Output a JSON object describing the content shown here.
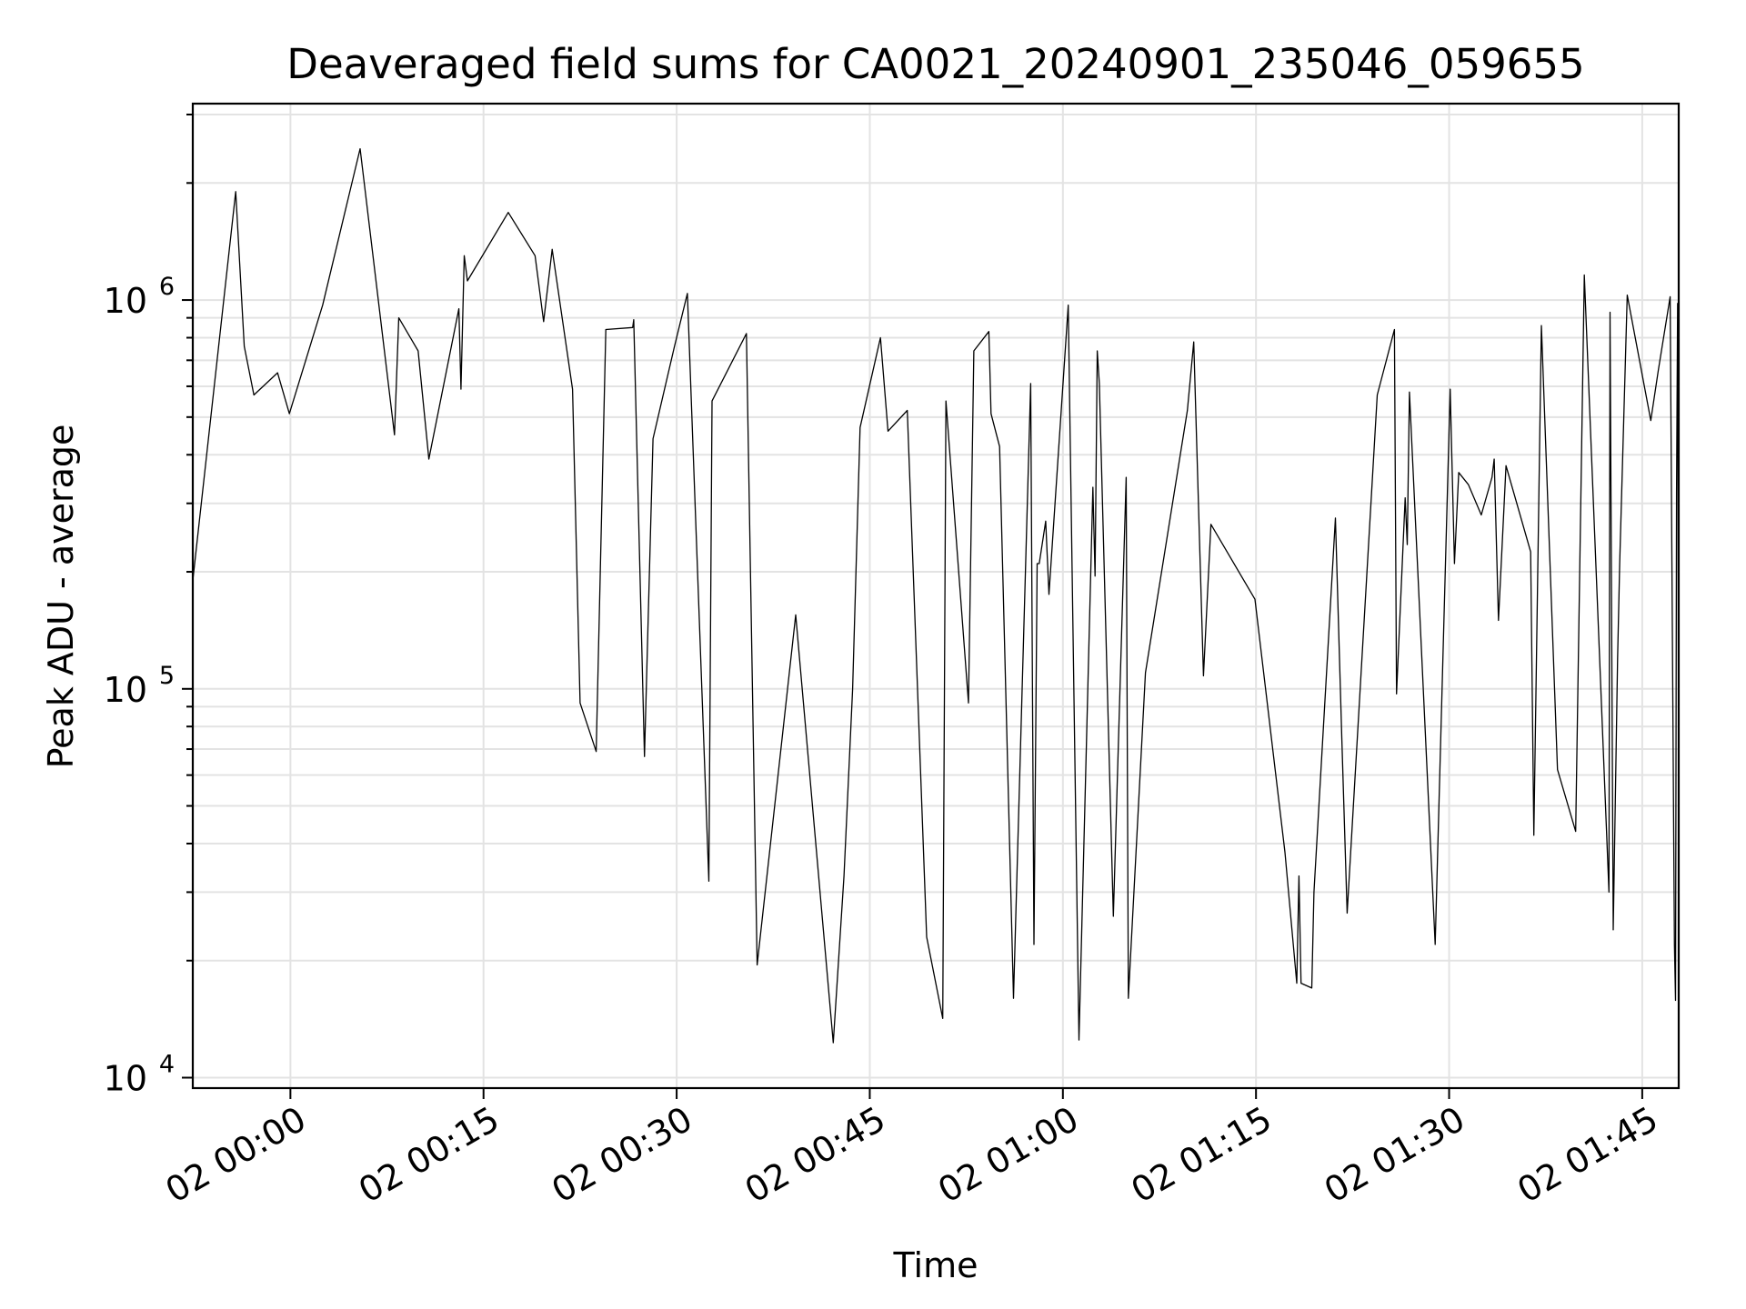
{
  "chart_data": {
    "type": "line",
    "title": "Deaveraged field sums for CA0021_20240901_235046_059655",
    "xlabel": "Time",
    "ylabel": "Peak ADU - average",
    "xscale": "time",
    "yscale": "log",
    "xlim": [
      "2024-09-01 23:52:25",
      "2024-09-02 01:47:50"
    ],
    "ylim": [
      9400,
      3200000
    ],
    "x_ticks": [
      {
        "t": "2024-09-02 00:00",
        "label": "02 00:00"
      },
      {
        "t": "2024-09-02 00:15",
        "label": "02 00:15"
      },
      {
        "t": "2024-09-02 00:30",
        "label": "02 00:30"
      },
      {
        "t": "2024-09-02 00:45",
        "label": "02 00:45"
      },
      {
        "t": "2024-09-02 01:00",
        "label": "02 01:00"
      },
      {
        "t": "2024-09-02 01:15",
        "label": "02 01:15"
      },
      {
        "t": "2024-09-02 01:30",
        "label": "02 01:30"
      },
      {
        "t": "2024-09-02 01:45",
        "label": "02 01:45"
      }
    ],
    "y_ticks": [
      {
        "v": 10000,
        "base": "10",
        "exp": "4"
      },
      {
        "v": 100000,
        "base": "10",
        "exp": "5"
      },
      {
        "v": 1000000,
        "base": "10",
        "exp": "6"
      }
    ],
    "grid": true,
    "legend": "none",
    "series": [
      {
        "color": "#000000",
        "points": [
          [
            "2024-09-01 23:52:25",
            190000
          ],
          [
            "2024-09-01 23:55:45",
            1900000
          ],
          [
            "2024-09-01 23:56:25",
            760000
          ],
          [
            "2024-09-01 23:57:10",
            570000
          ],
          [
            "2024-09-01 23:59:00",
            650000
          ],
          [
            "2024-09-01 23:59:55",
            510000
          ],
          [
            "2024-09-02 00:02:30",
            970000
          ],
          [
            "2024-09-02 00:05:25",
            2450000
          ],
          [
            "2024-09-02 00:08:05",
            450000
          ],
          [
            "2024-09-02 00:08:25",
            900000
          ],
          [
            "2024-09-02 00:09:55",
            740000
          ],
          [
            "2024-09-02 00:10:45",
            390000
          ],
          [
            "2024-09-02 00:13:05",
            950000
          ],
          [
            "2024-09-02 00:13:15",
            590000
          ],
          [
            "2024-09-02 00:13:30",
            1300000
          ],
          [
            "2024-09-02 00:13:45",
            1120000
          ],
          [
            "2024-09-02 00:16:55",
            1680000
          ],
          [
            "2024-09-02 00:19:00",
            1300000
          ],
          [
            "2024-09-02 00:19:40",
            880000
          ],
          [
            "2024-09-02 00:20:20",
            1350000
          ],
          [
            "2024-09-02 00:21:55",
            590000
          ],
          [
            "2024-09-02 00:22:30",
            92000
          ],
          [
            "2024-09-02 00:23:45",
            69000
          ],
          [
            "2024-09-02 00:24:30",
            840000
          ],
          [
            "2024-09-02 00:26:35",
            850000
          ],
          [
            "2024-09-02 00:26:40",
            890000
          ],
          [
            "2024-09-02 00:27:30",
            67000
          ],
          [
            "2024-09-02 00:28:10",
            440000
          ],
          [
            "2024-09-02 00:29:50",
            760000
          ],
          [
            "2024-09-02 00:30:50",
            1040000
          ],
          [
            "2024-09-02 00:32:30",
            32000
          ],
          [
            "2024-09-02 00:32:45",
            550000
          ],
          [
            "2024-09-02 00:35:25",
            820000
          ],
          [
            "2024-09-02 00:36:15",
            19500
          ],
          [
            "2024-09-02 00:39:15",
            155000
          ],
          [
            "2024-09-02 00:42:10",
            12300
          ],
          [
            "2024-09-02 00:43:00",
            33000
          ],
          [
            "2024-09-02 00:43:40",
            100000
          ],
          [
            "2024-09-02 00:44:15",
            470000
          ],
          [
            "2024-09-02 00:45:50",
            800000
          ],
          [
            "2024-09-02 00:46:25",
            460000
          ],
          [
            "2024-09-02 00:47:55",
            520000
          ],
          [
            "2024-09-02 00:49:25",
            23000
          ],
          [
            "2024-09-02 00:50:40",
            14200
          ],
          [
            "2024-09-02 00:50:55",
            550000
          ],
          [
            "2024-09-02 00:52:40",
            92000
          ],
          [
            "2024-09-02 00:53:05",
            740000
          ],
          [
            "2024-09-02 00:54:15",
            830000
          ],
          [
            "2024-09-02 00:54:25",
            510000
          ],
          [
            "2024-09-02 00:55:05",
            420000
          ],
          [
            "2024-09-02 00:56:10",
            16000
          ],
          [
            "2024-09-02 00:57:30",
            610000
          ],
          [
            "2024-09-02 00:57:45",
            22000
          ],
          [
            "2024-09-02 00:58:00",
            210000
          ],
          [
            "2024-09-02 00:58:10",
            210000
          ],
          [
            "2024-09-02 00:58:40",
            270000
          ],
          [
            "2024-09-02 00:58:55",
            175000
          ],
          [
            "2024-09-02 01:00:25",
            970000
          ],
          [
            "2024-09-02 01:01:15",
            12500
          ],
          [
            "2024-09-02 01:02:20",
            330000
          ],
          [
            "2024-09-02 01:02:30",
            195000
          ],
          [
            "2024-09-02 01:02:40",
            740000
          ],
          [
            "2024-09-02 01:02:50",
            610000
          ],
          [
            "2024-09-02 01:03:55",
            26000
          ],
          [
            "2024-09-02 01:04:55",
            350000
          ],
          [
            "2024-09-02 01:05:05",
            16000
          ],
          [
            "2024-09-02 01:06:25",
            110000
          ],
          [
            "2024-09-02 01:09:40",
            520000
          ],
          [
            "2024-09-02 01:10:10",
            780000
          ],
          [
            "2024-09-02 01:10:55",
            108000
          ],
          [
            "2024-09-02 01:11:30",
            265000
          ],
          [
            "2024-09-02 01:14:55",
            170000
          ],
          [
            "2024-09-02 01:17:15",
            38000
          ],
          [
            "2024-09-02 01:18:10",
            17500
          ],
          [
            "2024-09-02 01:18:20",
            33000
          ],
          [
            "2024-09-02 01:18:30",
            17500
          ],
          [
            "2024-09-02 01:19:20",
            17000
          ],
          [
            "2024-09-02 01:19:30",
            30000
          ],
          [
            "2024-09-02 01:21:10",
            275000
          ],
          [
            "2024-09-02 01:21:40",
            75000
          ],
          [
            "2024-09-02 01:22:05",
            26500
          ],
          [
            "2024-09-02 01:24:25",
            570000
          ],
          [
            "2024-09-02 01:25:45",
            840000
          ],
          [
            "2024-09-02 01:25:55",
            97000
          ],
          [
            "2024-09-02 01:26:35",
            310000
          ],
          [
            "2024-09-02 01:26:45",
            235000
          ],
          [
            "2024-09-02 01:26:55",
            580000
          ],
          [
            "2024-09-02 01:28:55",
            22000
          ],
          [
            "2024-09-02 01:30:05",
            590000
          ],
          [
            "2024-09-02 01:30:25",
            210000
          ],
          [
            "2024-09-02 01:30:45",
            360000
          ],
          [
            "2024-09-02 01:31:30",
            335000
          ],
          [
            "2024-09-02 01:32:30",
            280000
          ],
          [
            "2024-09-02 01:33:20",
            350000
          ],
          [
            "2024-09-02 01:33:30",
            390000
          ],
          [
            "2024-09-02 01:33:50",
            150000
          ],
          [
            "2024-09-02 01:34:25",
            375000
          ],
          [
            "2024-09-02 01:36:20",
            225000
          ],
          [
            "2024-09-02 01:36:35",
            42000
          ],
          [
            "2024-09-02 01:37:10",
            860000
          ],
          [
            "2024-09-02 01:38:25",
            62000
          ],
          [
            "2024-09-02 01:39:50",
            43000
          ],
          [
            "2024-09-02 01:40:30",
            1160000
          ],
          [
            "2024-09-02 01:42:25",
            30000
          ],
          [
            "2024-09-02 01:42:30",
            930000
          ],
          [
            "2024-09-02 01:42:45",
            24000
          ],
          [
            "2024-09-02 01:43:05",
            120000
          ],
          [
            "2024-09-02 01:43:15",
            210000
          ],
          [
            "2024-09-02 01:43:50",
            1030000
          ],
          [
            "2024-09-02 01:45:40",
            490000
          ],
          [
            "2024-09-02 01:46:15",
            660000
          ],
          [
            "2024-09-02 01:47:10",
            1020000
          ],
          [
            "2024-09-02 01:47:30",
            22000
          ],
          [
            "2024-09-02 01:47:35",
            15800
          ],
          [
            "2024-09-02 01:47:40",
            320000
          ],
          [
            "2024-09-02 01:47:45",
            980000
          ],
          [
            "2024-09-02 01:47:50",
            38000
          ]
        ]
      }
    ]
  }
}
